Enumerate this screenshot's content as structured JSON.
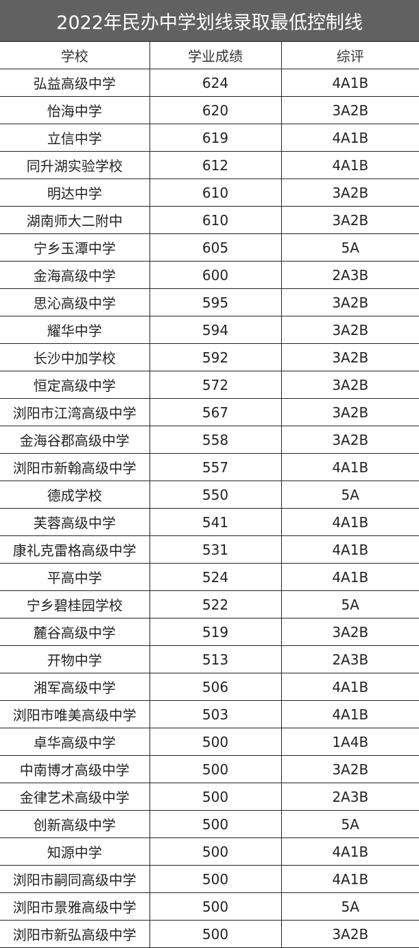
{
  "title": "2022年民办中学划线录取最低控制线",
  "columns": [
    "学校",
    "学业成绩",
    "综评"
  ],
  "rows": [
    [
      "弘益高级中学",
      "624",
      "4A1B"
    ],
    [
      "怡海中学",
      "620",
      "3A2B"
    ],
    [
      "立信中学",
      "619",
      "4A1B"
    ],
    [
      "同升湖实验学校",
      "612",
      "4A1B"
    ],
    [
      "明达中学",
      "610",
      "3A2B"
    ],
    [
      "湖南师大二附中",
      "610",
      "3A2B"
    ],
    [
      "宁乡玉潭中学",
      "605",
      "5A"
    ],
    [
      "金海高级中学",
      "600",
      "2A3B"
    ],
    [
      "思沁高级中学",
      "595",
      "3A2B"
    ],
    [
      "耀华中学",
      "594",
      "3A2B"
    ],
    [
      "长沙中加学校",
      "592",
      "3A2B"
    ],
    [
      "恒定高级中学",
      "572",
      "3A2B"
    ],
    [
      "浏阳市江湾高级中学",
      "567",
      "3A2B"
    ],
    [
      "金海谷郡高级中学",
      "558",
      "3A2B"
    ],
    [
      "浏阳市新翰高级中学",
      "557",
      "4A1B"
    ],
    [
      "德成学校",
      "550",
      "5A"
    ],
    [
      "芙蓉高级中学",
      "541",
      "4A1B"
    ],
    [
      "康礼克雷格高级中学",
      "531",
      "4A1B"
    ],
    [
      "平高中学",
      "524",
      "4A1B"
    ],
    [
      "宁乡碧桂园学校",
      "522",
      "5A"
    ],
    [
      "麓谷高级中学",
      "519",
      "3A2B"
    ],
    [
      "开物中学",
      "513",
      "2A3B"
    ],
    [
      "湘军高级中学",
      "506",
      "4A1B"
    ],
    [
      "浏阳市唯美高级中学",
      "503",
      "4A1B"
    ],
    [
      "卓华高级中学",
      "500",
      "1A4B"
    ],
    [
      "中南博才高级中学",
      "500",
      "3A2B"
    ],
    [
      "金律艺术高级中学",
      "500",
      "2A3B"
    ],
    [
      "创新高级中学",
      "500",
      "5A"
    ],
    [
      "知源中学",
      "500",
      "4A1B"
    ],
    [
      "浏阳市嗣同高级中学",
      "500",
      "4A1B"
    ],
    [
      "浏阳市景雅高级中学",
      "500",
      "5A"
    ],
    [
      "浏阳市新弘高级中学",
      "500",
      "3A2B"
    ]
  ]
}
